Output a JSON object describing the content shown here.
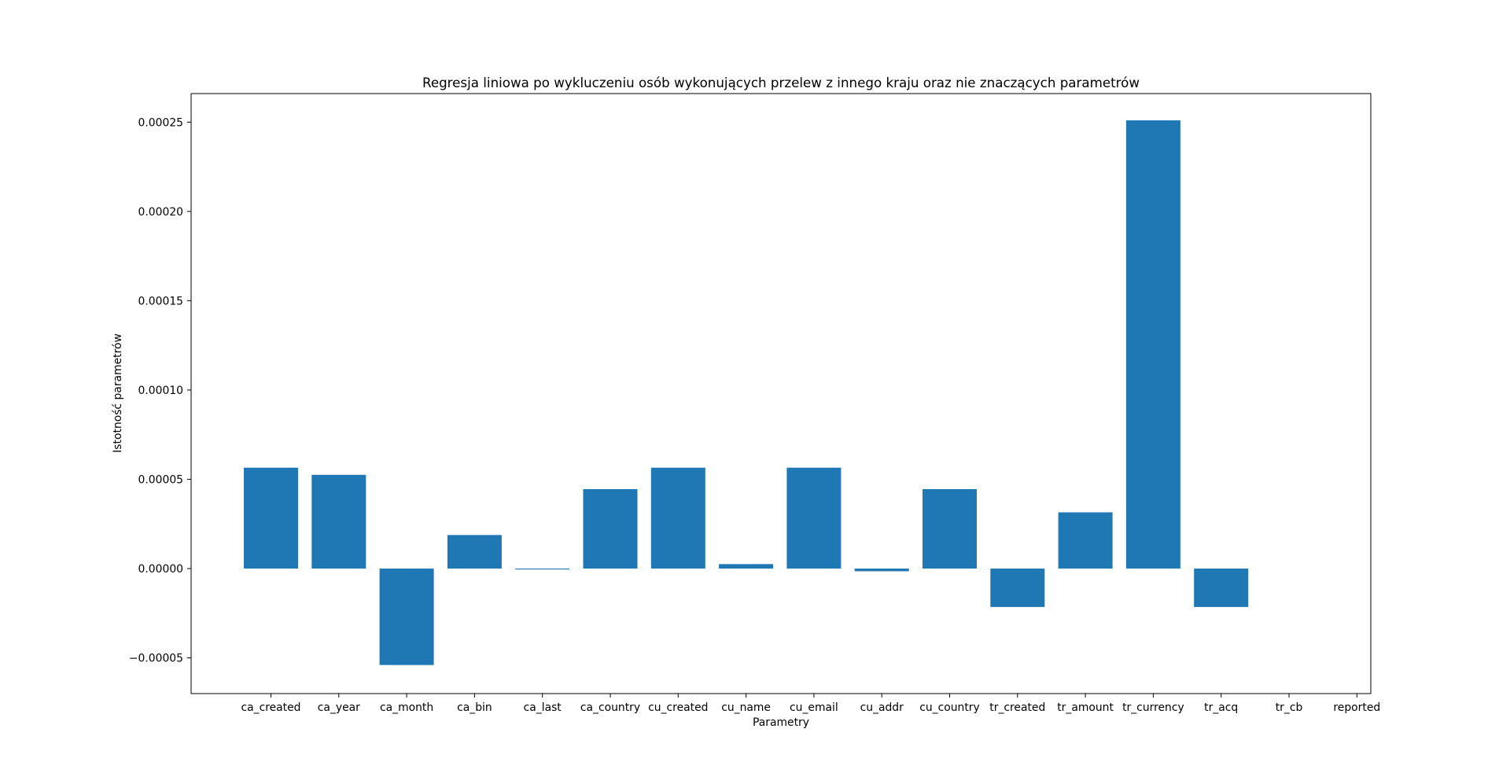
{
  "chart_data": {
    "type": "bar",
    "title": "Regresja liniowa po wykluczeniu osób wykonujących przelew z innego kraju oraz nie znaczących parametrów",
    "xlabel": "Parametry",
    "ylabel": "Istotność parametrów",
    "categories": [
      "ca_created",
      "ca_year",
      "ca_month",
      "ca_bin",
      "ca_last",
      "ca_country",
      "cu_created",
      "cu_name",
      "cu_email",
      "cu_addr",
      "cu_country",
      "tr_created",
      "tr_amount",
      "tr_currency",
      "tr_acq",
      "tr_cb",
      "reported"
    ],
    "values": [
      5.65e-05,
      5.25e-05,
      -5.4e-05,
      1.88e-05,
      -5e-07,
      4.45e-05,
      5.65e-05,
      2.5e-06,
      5.65e-05,
      -1.5e-06,
      4.45e-05,
      -2.15e-05,
      3.15e-05,
      0.000251,
      -2.15e-05,
      0,
      0
    ],
    "ylim": [
      -7e-05,
      0.000266
    ],
    "yticks": [
      -5e-05,
      0.0,
      5e-05,
      0.0001,
      0.00015,
      0.0002,
      0.00025
    ],
    "ytick_labels": [
      "−0.00005",
      "0.00000",
      "0.00005",
      "0.00010",
      "0.00015",
      "0.00020",
      "0.00025"
    ],
    "bar_color": "#1f77b4",
    "grid": false,
    "legend": "none"
  }
}
